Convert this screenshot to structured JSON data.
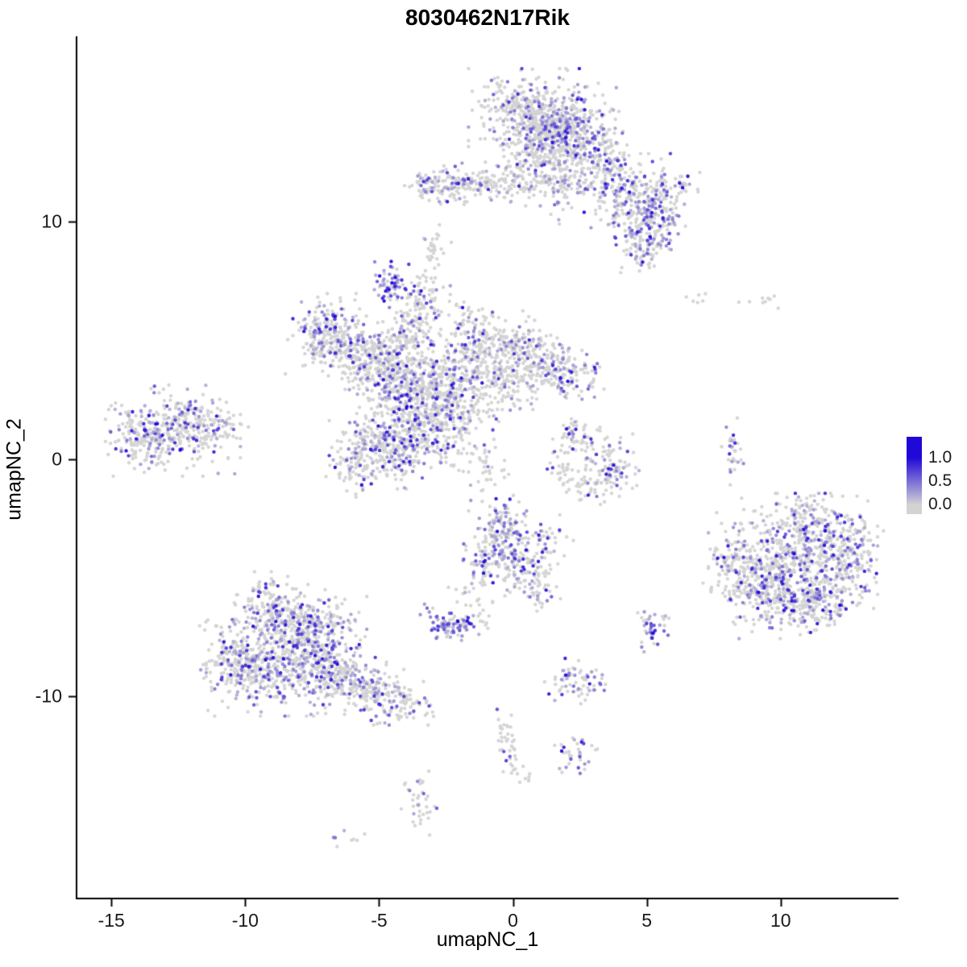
{
  "title": "8030462N17Rik",
  "chart_data": {
    "type": "scatter",
    "title": "8030462N17Rik",
    "xlabel": "umapNC_1",
    "ylabel": "umapNC_2",
    "xlim": [
      -16.3,
      14.4
    ],
    "ylim": [
      -18.5,
      17.8
    ],
    "x_tick_values": [
      -15,
      -10,
      -5,
      0,
      5,
      10
    ],
    "x_tick_labels": [
      "-15",
      "-10",
      "-5",
      "0",
      "5",
      "10"
    ],
    "y_tick_values": [
      10,
      0,
      -10
    ],
    "y_tick_labels": [
      "10",
      "0",
      "-10"
    ],
    "grid": false,
    "legend": {
      "position": "right",
      "labels": [
        "1.0",
        "0.5",
        "0.0"
      ],
      "values": [
        1.0,
        0.5,
        0.0
      ],
      "low_color": "#d3d3d3",
      "high_color": "#2008d8"
    },
    "point_color_zero": "#d3d3d3",
    "point_radius": 2.2,
    "seed": 1337,
    "cluster_fields": [
      "center_x",
      "center_y",
      "sd_x",
      "sd_y",
      "n_points",
      "expressing_fraction"
    ],
    "clusters": [
      [
        1.1,
        14.4,
        1.15,
        0.85,
        380,
        0.22
      ],
      [
        2.1,
        13.3,
        0.9,
        0.8,
        260,
        0.28
      ],
      [
        1.6,
        14.0,
        0.45,
        0.45,
        120,
        0.4
      ],
      [
        0.6,
        12.9,
        0.5,
        0.6,
        90,
        0.15
      ],
      [
        0.3,
        14.9,
        0.5,
        0.4,
        70,
        0.15
      ],
      [
        1.8,
        11.4,
        0.35,
        0.7,
        45,
        0.2
      ],
      [
        3.2,
        12.4,
        0.65,
        0.55,
        130,
        0.3
      ],
      [
        4.2,
        11.3,
        0.7,
        0.65,
        150,
        0.33
      ],
      [
        5.0,
        10.3,
        0.6,
        0.55,
        150,
        0.5
      ],
      [
        5.0,
        9.3,
        0.5,
        0.4,
        90,
        0.5
      ],
      [
        5.9,
        11.4,
        0.45,
        0.35,
        55,
        0.3
      ],
      [
        4.7,
        8.4,
        0.35,
        0.35,
        25,
        0.3
      ],
      [
        -2.6,
        11.5,
        0.75,
        0.4,
        110,
        0.3
      ],
      [
        -1.3,
        11.6,
        0.85,
        0.3,
        85,
        0.15
      ],
      [
        0.1,
        11.5,
        0.8,
        0.35,
        75,
        0.2
      ],
      [
        1.3,
        11.7,
        0.6,
        0.25,
        30,
        0.15
      ],
      [
        -2.9,
        8.7,
        0.25,
        0.5,
        30,
        0.1
      ],
      [
        -4.5,
        7.4,
        0.33,
        0.45,
        60,
        0.8
      ],
      [
        -6.9,
        5.6,
        0.55,
        0.65,
        120,
        0.35
      ],
      [
        -7.3,
        4.7,
        0.5,
        0.5,
        80,
        0.3
      ],
      [
        -6.0,
        4.7,
        0.65,
        0.55,
        130,
        0.2
      ],
      [
        -5.2,
        3.9,
        0.65,
        0.6,
        140,
        0.2
      ],
      [
        -4.5,
        4.6,
        0.6,
        0.55,
        120,
        0.25
      ],
      [
        -3.8,
        5.6,
        0.5,
        0.7,
        100,
        0.2
      ],
      [
        -3.3,
        6.8,
        0.4,
        0.5,
        60,
        0.15
      ],
      [
        -4.3,
        3.2,
        0.7,
        0.65,
        160,
        0.3
      ],
      [
        -3.5,
        2.4,
        0.8,
        0.75,
        190,
        0.25
      ],
      [
        -2.5,
        3.3,
        0.75,
        0.65,
        150,
        0.2
      ],
      [
        -1.5,
        4.2,
        0.85,
        0.75,
        170,
        0.15
      ],
      [
        -0.5,
        4.8,
        0.75,
        0.65,
        140,
        0.15
      ],
      [
        0.5,
        4.4,
        0.65,
        0.6,
        115,
        0.2
      ],
      [
        1.4,
        3.9,
        0.65,
        0.55,
        105,
        0.25
      ],
      [
        2.2,
        3.6,
        0.5,
        0.45,
        70,
        0.35
      ],
      [
        -2.2,
        1.8,
        0.75,
        0.65,
        150,
        0.2
      ],
      [
        -3.3,
        0.9,
        0.7,
        0.65,
        145,
        0.25
      ],
      [
        -4.3,
        0.3,
        0.75,
        0.65,
        155,
        0.3
      ],
      [
        -5.3,
        0.6,
        0.65,
        0.55,
        125,
        0.3
      ],
      [
        -5.9,
        -0.5,
        0.5,
        0.5,
        75,
        0.25
      ],
      [
        -1.2,
        -0.4,
        0.5,
        0.5,
        40,
        0.1
      ],
      [
        -0.4,
        2.9,
        0.55,
        0.55,
        70,
        0.1
      ],
      [
        -1.9,
        5.9,
        0.4,
        0.4,
        30,
        0.2
      ],
      [
        -12.7,
        1.2,
        1.05,
        0.8,
        310,
        0.3
      ],
      [
        -13.8,
        0.8,
        0.55,
        0.5,
        85,
        0.25
      ],
      [
        -11.5,
        1.5,
        0.5,
        0.5,
        70,
        0.3
      ],
      [
        -10.6,
        1.2,
        0.3,
        0.3,
        12,
        0.2
      ],
      [
        2.4,
        0.9,
        0.5,
        0.4,
        50,
        0.2
      ],
      [
        3.3,
        0.2,
        0.5,
        0.5,
        55,
        0.2
      ],
      [
        3.9,
        -0.7,
        0.4,
        0.4,
        45,
        0.35
      ],
      [
        2.7,
        -1.2,
        0.55,
        0.3,
        40,
        0.2
      ],
      [
        2.0,
        -0.2,
        0.3,
        0.5,
        28,
        0.1
      ],
      [
        8.2,
        0.3,
        0.17,
        0.75,
        30,
        0.45
      ],
      [
        7.1,
        6.6,
        0.3,
        0.15,
        6,
        0.0
      ],
      [
        9.3,
        6.7,
        0.45,
        0.2,
        9,
        0.0
      ],
      [
        10.3,
        -4.2,
        1.25,
        1.15,
        400,
        0.28
      ],
      [
        11.7,
        -3.6,
        0.8,
        0.85,
        190,
        0.33
      ],
      [
        12.4,
        -4.7,
        0.6,
        0.7,
        115,
        0.3
      ],
      [
        9.2,
        -5.3,
        0.75,
        0.75,
        160,
        0.3
      ],
      [
        10.4,
        -6.0,
        0.85,
        0.65,
        160,
        0.35
      ],
      [
        11.5,
        -6.1,
        0.55,
        0.5,
        85,
        0.3
      ],
      [
        8.3,
        -4.3,
        0.5,
        0.6,
        75,
        0.25
      ],
      [
        10.9,
        -2.5,
        0.5,
        0.4,
        55,
        0.3
      ],
      [
        12.9,
        -3.3,
        0.4,
        0.5,
        25,
        0.3
      ],
      [
        -8.7,
        -8.3,
        1.25,
        1.05,
        430,
        0.35
      ],
      [
        -9.9,
        -8.9,
        0.65,
        0.65,
        150,
        0.3
      ],
      [
        -7.5,
        -7.3,
        0.85,
        0.75,
        210,
        0.35
      ],
      [
        -8.6,
        -6.6,
        0.75,
        0.55,
        140,
        0.3
      ],
      [
        -7.0,
        -8.8,
        0.75,
        0.65,
        160,
        0.3
      ],
      [
        -6.0,
        -9.5,
        0.75,
        0.55,
        130,
        0.25
      ],
      [
        -4.9,
        -10.0,
        0.65,
        0.5,
        95,
        0.25
      ],
      [
        -4.0,
        -10.4,
        0.45,
        0.4,
        50,
        0.2
      ],
      [
        -9.3,
        -5.7,
        0.5,
        0.4,
        40,
        0.2
      ],
      [
        -10.7,
        -8.3,
        0.4,
        0.6,
        55,
        0.25
      ],
      [
        -0.4,
        -3.3,
        0.6,
        0.65,
        125,
        0.5
      ],
      [
        0.3,
        -4.2,
        0.6,
        0.65,
        115,
        0.3
      ],
      [
        -0.9,
        -4.5,
        0.4,
        0.5,
        55,
        0.35
      ],
      [
        0.9,
        -5.2,
        0.5,
        0.5,
        55,
        0.25
      ],
      [
        1.3,
        -3.3,
        0.4,
        0.4,
        22,
        0.3
      ],
      [
        -0.3,
        -2.4,
        0.3,
        0.4,
        32,
        0.35
      ],
      [
        -2.3,
        -6.9,
        0.55,
        0.33,
        80,
        0.8
      ],
      [
        -1.5,
        -6.9,
        0.4,
        0.15,
        18,
        0.2
      ],
      [
        -1.6,
        -5.6,
        0.35,
        0.5,
        22,
        0.1
      ],
      [
        2.4,
        -9.4,
        0.55,
        0.42,
        65,
        0.4
      ],
      [
        5.2,
        -7.1,
        0.3,
        0.45,
        40,
        0.6
      ],
      [
        -0.3,
        -11.3,
        0.25,
        0.5,
        18,
        0.15
      ],
      [
        -0.1,
        -12.5,
        0.25,
        0.5,
        22,
        0.35
      ],
      [
        0.4,
        -13.3,
        0.3,
        0.3,
        8,
        0.1
      ],
      [
        2.4,
        -12.4,
        0.35,
        0.4,
        35,
        0.45
      ],
      [
        -3.5,
        -14.6,
        0.28,
        0.75,
        38,
        0.12
      ],
      [
        -6.1,
        -15.9,
        0.25,
        0.2,
        8,
        0.3
      ]
    ]
  }
}
